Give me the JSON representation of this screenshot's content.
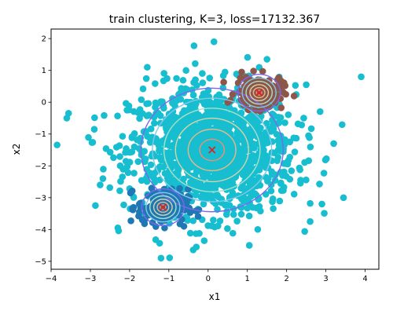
{
  "chart_data": {
    "type": "scatter",
    "title": "train clustering, K=3, loss=17132.367",
    "xlabel": "x1",
    "ylabel": "x2",
    "xlim": [
      -4,
      4.35
    ],
    "ylim": [
      -5.25,
      2.3
    ],
    "xticks": [
      -4,
      -3,
      -2,
      -1,
      0,
      1,
      2,
      3,
      4
    ],
    "yticks": [
      -5,
      -4,
      -3,
      -2,
      -1,
      0,
      1,
      2
    ],
    "grid": false,
    "clusters": [
      {
        "color": "#17becf",
        "center": [
          0.1,
          -1.5
        ],
        "spread": [
          1.05,
          1.0
        ],
        "n_points": 1300,
        "contour_radii": [
          1.85,
          1.55,
          1.25,
          0.95,
          0.62,
          0.32
        ],
        "contour_color_scale": [
          "#7b68ee",
          "#80c8e8",
          "#a8e0c8",
          "#d6d4a8",
          "#e8b888",
          "#ee9070"
        ]
      },
      {
        "color": "#8c564b",
        "center": [
          1.3,
          0.3
        ],
        "spread": [
          0.3,
          0.26
        ],
        "n_points": 160,
        "contour_radii": [
          0.55,
          0.44,
          0.34,
          0.24,
          0.15,
          0.07
        ],
        "contour_color_scale": [
          "#7b68ee",
          "#80c8e8",
          "#a8e0c8",
          "#d6d4a8",
          "#e8b888",
          "#ee9070"
        ]
      },
      {
        "color": "#1f77b4",
        "center": [
          -1.15,
          -3.3
        ],
        "spread": [
          0.32,
          0.28
        ],
        "n_points": 170,
        "contour_radii": [
          0.55,
          0.44,
          0.34,
          0.24,
          0.15,
          0.07
        ],
        "contour_color_scale": [
          "#7b68ee",
          "#80c8e8",
          "#a8e0c8",
          "#d6d4a8",
          "#e8b888",
          "#ee9070"
        ]
      }
    ],
    "center_marker": {
      "symbol": "x",
      "color": "#d62728"
    },
    "outliers": [
      [
        -3.6,
        -0.5
      ],
      [
        3.9,
        0.8
      ],
      [
        0.15,
        1.9
      ],
      [
        -1.2,
        -4.9
      ],
      [
        3.45,
        -3.0
      ],
      [
        -2.9,
        -0.85
      ],
      [
        3.2,
        -1.3
      ],
      [
        2.9,
        -3.2
      ],
      [
        -2.3,
        -3.95
      ],
      [
        2.6,
        -3.75
      ],
      [
        1.05,
        -4.5
      ],
      [
        -0.3,
        -4.55
      ],
      [
        -2.75,
        -2.6
      ],
      [
        2.5,
        0.55
      ],
      [
        1.5,
        1.35
      ],
      [
        -1.55,
        1.1
      ]
    ]
  }
}
